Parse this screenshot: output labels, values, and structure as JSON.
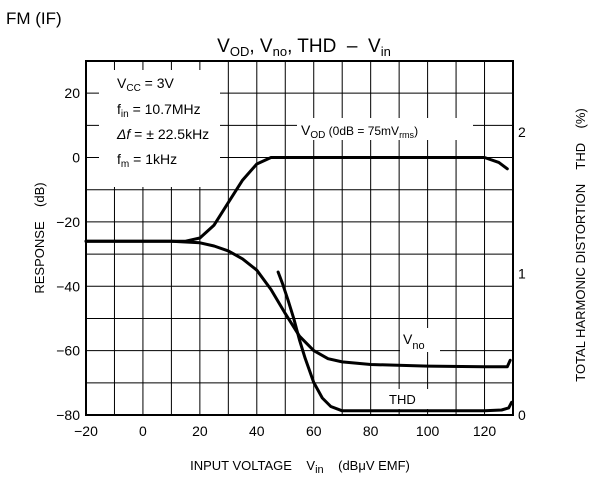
{
  "header_label": "FM (IF)",
  "chart_data": {
    "type": "line",
    "title": {
      "parts": [
        "V",
        "OD",
        ", V",
        "no",
        ", THD  –  V",
        "in"
      ]
    },
    "xlabel": {
      "main": "INPUT VOLTAGE",
      "sym": "V",
      "sub": "in",
      "unit": "(dBμV EMF)"
    },
    "ylabel_left": {
      "main": "RESPONSE",
      "unit": "(dB)"
    },
    "ylabel_right": {
      "main": "TOTAL HARMONIC DISTORTION",
      "sym": "THD",
      "unit": "(%)"
    },
    "xlim": [
      -20,
      130
    ],
    "ylim_left": [
      -80,
      30
    ],
    "ylim_right": [
      0,
      2.5
    ],
    "x_ticks": [
      -20,
      0,
      20,
      40,
      60,
      80,
      100,
      120
    ],
    "x_tick_labels": [
      "−20",
      "0",
      "20",
      "40",
      "60",
      "80",
      "100",
      "120"
    ],
    "y_left_ticks": [
      20,
      0,
      -20,
      -40,
      -60,
      -80
    ],
    "y_left_tick_labels": [
      "20",
      "0",
      "−20",
      "−40",
      "−60",
      "−80"
    ],
    "y_right_ticks": [
      2,
      1,
      0
    ],
    "y_right_tick_labels": [
      "2",
      "1",
      "0"
    ],
    "grid": true,
    "conditions": [
      {
        "sym": "V",
        "sub": "CC",
        "rest": " = 3V"
      },
      {
        "sym": "f",
        "sub": "in",
        "rest": " = 10.7MHz"
      },
      {
        "sym": "Δf",
        "sub": "",
        "rest": " = ± 22.5kHz"
      },
      {
        "sym": "f",
        "sub": "m",
        "rest": " = 1kHz"
      }
    ],
    "series": [
      {
        "name": "VOD",
        "label": {
          "sym": "V",
          "sub": "OD",
          "mid": " (0dB = 75mV",
          "sub2": "rms",
          "end": ")"
        },
        "axis": "left",
        "x": [
          -20,
          0,
          15,
          20,
          25,
          30,
          35,
          40,
          45,
          50,
          60,
          80,
          100,
          110,
          120,
          125,
          128
        ],
        "y": [
          -26,
          -26,
          -26,
          -25,
          -21,
          -14,
          -7,
          -2,
          0,
          0,
          0,
          0,
          0,
          0,
          0,
          -1.5,
          -3.5
        ]
      },
      {
        "name": "Vno",
        "label": {
          "sym": "V",
          "sub": "no"
        },
        "axis": "left",
        "x": [
          -20,
          0,
          10,
          20,
          25,
          30,
          35,
          40,
          45,
          50,
          55,
          60,
          65,
          70,
          80,
          100,
          120,
          128,
          129
        ],
        "y": [
          -26,
          -26,
          -26,
          -26.5,
          -27.5,
          -29,
          -31.5,
          -35,
          -41,
          -48.5,
          -55.5,
          -60,
          -62.5,
          -63.5,
          -64.3,
          -64.8,
          -65,
          -65,
          -63
        ]
      },
      {
        "name": "THD",
        "label": {
          "sym": "THD"
        },
        "axis": "right",
        "x": [
          47.5,
          49,
          51,
          53,
          55,
          57,
          60,
          63,
          66,
          70,
          80,
          100,
          120,
          126,
          128.5,
          129.5
        ],
        "y": [
          1.01,
          0.93,
          0.81,
          0.68,
          0.53,
          0.4,
          0.23,
          0.12,
          0.06,
          0.03,
          0.03,
          0.03,
          0.03,
          0.035,
          0.05,
          0.09
        ]
      }
    ]
  }
}
